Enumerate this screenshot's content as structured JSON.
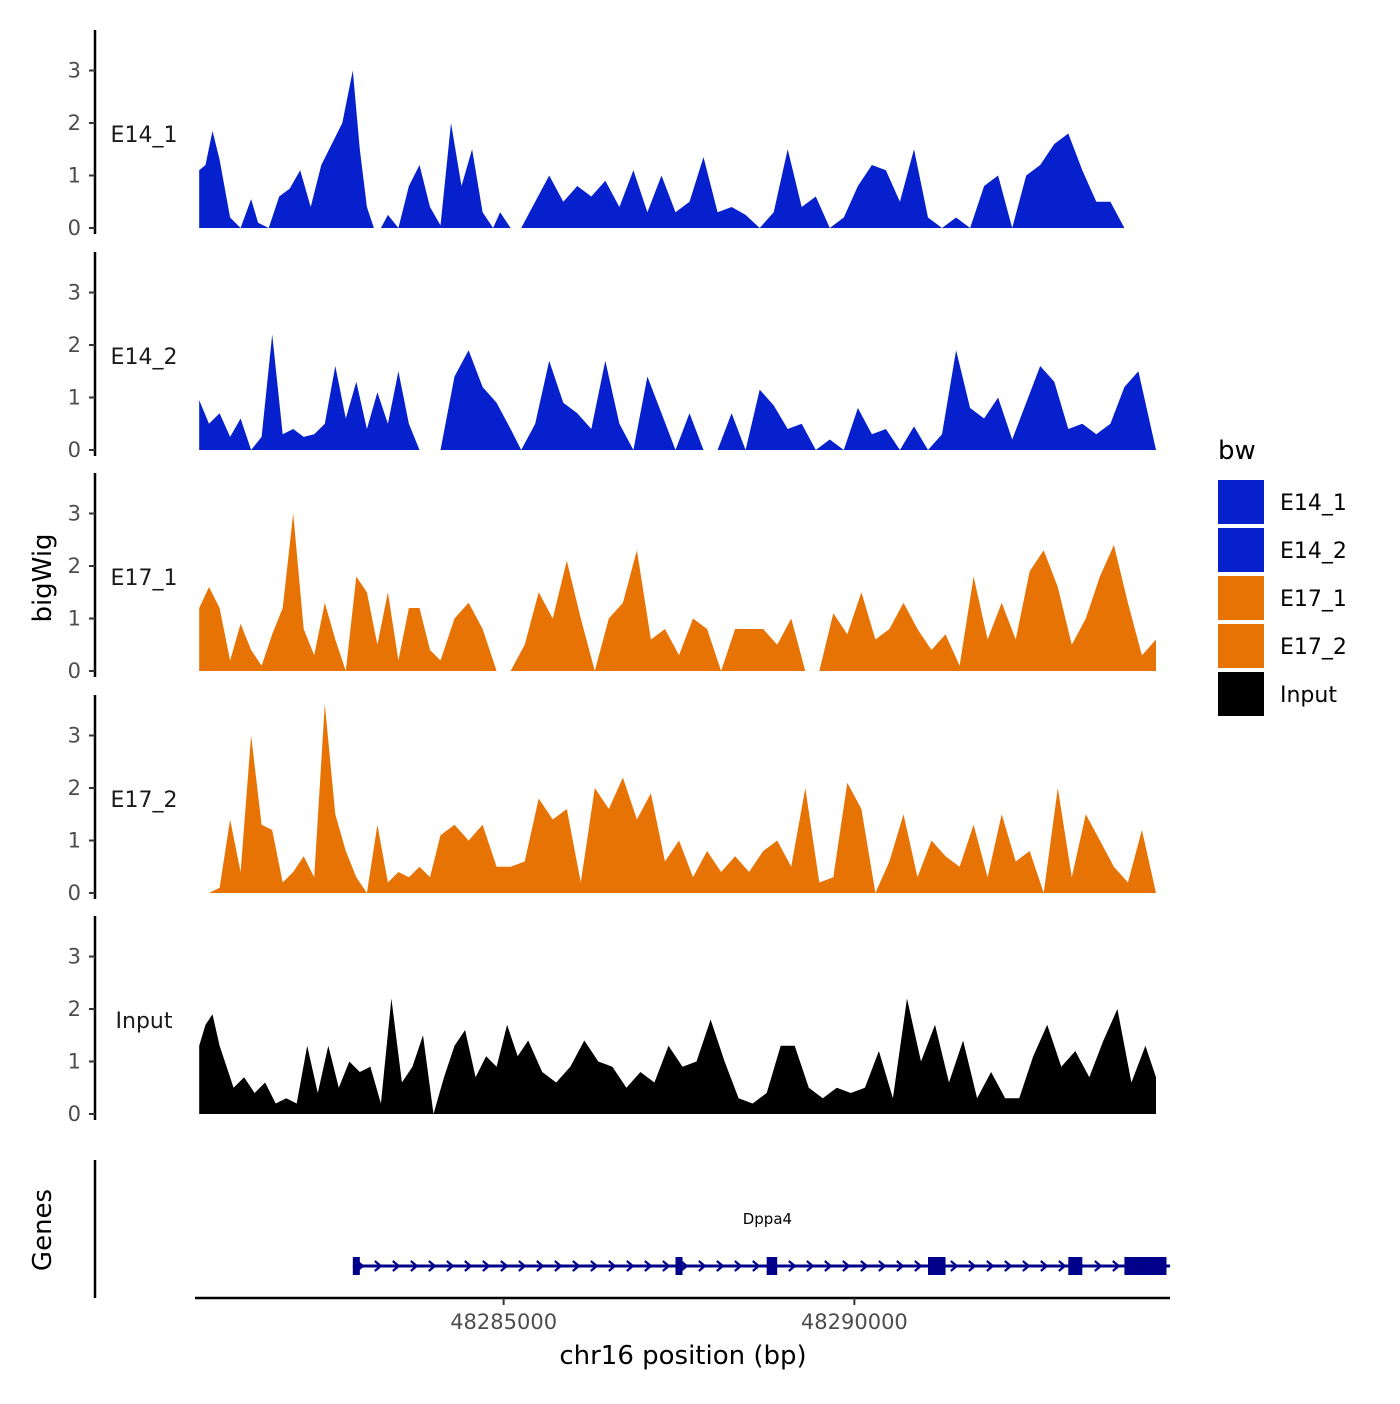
{
  "chart_data": {
    "type": "area",
    "chromosome": "chr16",
    "xlabel": "chr16 position (bp)",
    "ylabel": "bigWig",
    "genes_label": "Genes",
    "xlim": [
      48280600,
      48294500
    ],
    "x_ticks": [
      48285000,
      48290000
    ],
    "x_tick_labels": [
      "48285000",
      "48290000"
    ],
    "ylim": [
      0,
      3.8
    ],
    "y_ticks": [
      0,
      1,
      2,
      3
    ],
    "y_tick_labels": [
      "0",
      "1",
      "2",
      "3"
    ],
    "grid": false,
    "legend": {
      "title": "bw",
      "position": "right",
      "entries": [
        {
          "label": "E14_1",
          "color": "#0520CC"
        },
        {
          "label": "E14_2",
          "color": "#0520CC"
        },
        {
          "label": "E17_1",
          "color": "#E87305"
        },
        {
          "label": "E17_2",
          "color": "#E87305"
        },
        {
          "label": "Input",
          "color": "#000000"
        }
      ]
    },
    "series": [
      {
        "name": "E14_1",
        "color": "#0520CC",
        "x": [
          48280660,
          48280750,
          48280850,
          48280950,
          48281100,
          48281250,
          48281400,
          48281500,
          48281650,
          48281800,
          48281950,
          48282100,
          48282250,
          48282400,
          48282550,
          48282700,
          48282850,
          48282950,
          48283050,
          48283150,
          48283250,
          48283350,
          48283500,
          48283650,
          48283800,
          48283950,
          48284100,
          48284250,
          48284400,
          48284550,
          48284700,
          48284850,
          48284950,
          48285100,
          48285250,
          48285450,
          48285650,
          48285850,
          48286050,
          48286250,
          48286450,
          48286650,
          48286850,
          48287050,
          48287250,
          48287450,
          48287650,
          48287850,
          48288050,
          48288250,
          48288450,
          48288650,
          48288850,
          48289050,
          48289250,
          48289450,
          48289650,
          48289850,
          48290050,
          48290250,
          48290450,
          48290650,
          48290850,
          48291050,
          48291250,
          48291450,
          48291650,
          48291850,
          48292050,
          48292250,
          48292450,
          48292650,
          48292850,
          48293050,
          48293250,
          48293450,
          48293650,
          48293850,
          48294050,
          48294200,
          48294300
        ],
        "values": [
          1.1,
          1.2,
          1.85,
          1.3,
          0.2,
          0,
          0.55,
          0.1,
          0,
          0.6,
          0.75,
          1.1,
          0.4,
          1.2,
          1.6,
          2.0,
          3.0,
          1.5,
          0.4,
          0,
          0,
          0.25,
          0,
          0.8,
          1.2,
          0.4,
          0.05,
          2.0,
          0.8,
          1.5,
          0.3,
          0,
          0.3,
          0,
          0,
          0.5,
          1.0,
          0.5,
          0.8,
          0.6,
          0.9,
          0.4,
          1.1,
          0.3,
          1.0,
          0.3,
          0.5,
          1.35,
          0.3,
          0.4,
          0.25,
          0,
          0.3,
          1.5,
          0.4,
          0.6,
          0,
          0.2,
          0.8,
          1.2,
          1.1,
          0.5,
          1.5,
          0.2,
          0,
          0.2,
          0,
          0.8,
          1.0,
          0,
          1.0,
          1.2,
          1.6,
          1.8,
          1.1,
          0.5,
          0.5,
          0,
          0,
          0,
          0
        ]
      },
      {
        "name": "E14_2",
        "color": "#0520CC",
        "x": [
          48280660,
          48280800,
          48280950,
          48281100,
          48281250,
          48281400,
          48281550,
          48281700,
          48281850,
          48282000,
          48282150,
          48282300,
          48282450,
          48282600,
          48282750,
          48282900,
          48283050,
          48283200,
          48283350,
          48283500,
          48283650,
          48283800,
          48283950,
          48284100,
          48284300,
          48284500,
          48284700,
          48284900,
          48285100,
          48285250,
          48285450,
          48285650,
          48285850,
          48286050,
          48286250,
          48286450,
          48286650,
          48286850,
          48287050,
          48287250,
          48287450,
          48287650,
          48287850,
          48288050,
          48288250,
          48288450,
          48288650,
          48288850,
          48289050,
          48289250,
          48289450,
          48289650,
          48289850,
          48290050,
          48290250,
          48290450,
          48290650,
          48290850,
          48291050,
          48291250,
          48291450,
          48291650,
          48291850,
          48292050,
          48292250,
          48292450,
          48292650,
          48292850,
          48293050,
          48293250,
          48293450,
          48293650,
          48293850,
          48294050,
          48294300
        ],
        "values": [
          0.95,
          0.5,
          0.7,
          0.25,
          0.6,
          0,
          0.25,
          2.2,
          0.3,
          0.4,
          0.25,
          0.3,
          0.5,
          1.6,
          0.6,
          1.3,
          0.4,
          1.1,
          0.5,
          1.5,
          0.5,
          0,
          0,
          0,
          1.4,
          1.9,
          1.2,
          0.9,
          0.4,
          0,
          0.5,
          1.7,
          0.9,
          0.7,
          0.4,
          1.7,
          0.5,
          0,
          1.4,
          0.7,
          0,
          0.7,
          0,
          0,
          0.7,
          0,
          1.15,
          0.85,
          0.4,
          0.5,
          0,
          0.2,
          0,
          0.8,
          0.3,
          0.4,
          0,
          0.45,
          0,
          0.3,
          1.9,
          0.8,
          0.6,
          1.0,
          0.2,
          0.9,
          1.6,
          1.3,
          0.4,
          0.5,
          0.3,
          0.5,
          1.2,
          1.5,
          0
        ]
      },
      {
        "name": "E17_1",
        "color": "#E87305",
        "x": [
          48280660,
          48280800,
          48280950,
          48281100,
          48281250,
          48281400,
          48281550,
          48281700,
          48281850,
          48282000,
          48282150,
          48282300,
          48282450,
          48282600,
          48282750,
          48282900,
          48283050,
          48283200,
          48283350,
          48283500,
          48283650,
          48283800,
          48283950,
          48284100,
          48284300,
          48284500,
          48284700,
          48284900,
          48285100,
          48285300,
          48285500,
          48285700,
          48285900,
          48286100,
          48286300,
          48286500,
          48286700,
          48286900,
          48287100,
          48287300,
          48287500,
          48287700,
          48287900,
          48288100,
          48288300,
          48288500,
          48288700,
          48288900,
          48289100,
          48289300,
          48289500,
          48289700,
          48289900,
          48290100,
          48290300,
          48290500,
          48290700,
          48290900,
          48291100,
          48291300,
          48291500,
          48291700,
          48291900,
          48292100,
          48292300,
          48292500,
          48292700,
          48292900,
          48293100,
          48293300,
          48293500,
          48293700,
          48293900,
          48294100,
          48294300
        ],
        "values": [
          1.2,
          1.6,
          1.2,
          0.2,
          0.9,
          0.4,
          0.1,
          0.7,
          1.2,
          3.0,
          0.8,
          0.3,
          1.3,
          0.6,
          0,
          1.8,
          1.5,
          0.5,
          1.5,
          0.2,
          1.2,
          1.2,
          0.4,
          0.2,
          1.0,
          1.3,
          0.8,
          0,
          0,
          0.5,
          1.5,
          1.0,
          2.1,
          1.0,
          0,
          1.0,
          1.3,
          2.3,
          0.6,
          0.8,
          0.3,
          1.0,
          0.8,
          0,
          0.8,
          0.8,
          0.8,
          0.5,
          1.0,
          0,
          0,
          1.1,
          0.7,
          1.5,
          0.6,
          0.8,
          1.3,
          0.8,
          0.4,
          0.7,
          0.1,
          1.8,
          0.6,
          1.3,
          0.6,
          1.9,
          2.3,
          1.6,
          0.5,
          1.0,
          1.8,
          2.4,
          1.3,
          0.3,
          0.6
        ]
      },
      {
        "name": "E17_2",
        "color": "#E87305",
        "x": [
          48280660,
          48280800,
          48280950,
          48281100,
          48281250,
          48281400,
          48281550,
          48281700,
          48281850,
          48282000,
          48282150,
          48282300,
          48282450,
          48282600,
          48282750,
          48282900,
          48283050,
          48283200,
          48283350,
          48283500,
          48283650,
          48283800,
          48283950,
          48284100,
          48284300,
          48284500,
          48284700,
          48284900,
          48285100,
          48285300,
          48285500,
          48285700,
          48285900,
          48286100,
          48286300,
          48286500,
          48286700,
          48286900,
          48287100,
          48287300,
          48287500,
          48287700,
          48287900,
          48288100,
          48288300,
          48288500,
          48288700,
          48288900,
          48289100,
          48289300,
          48289500,
          48289700,
          48289900,
          48290100,
          48290300,
          48290500,
          48290700,
          48290900,
          48291100,
          48291300,
          48291500,
          48291700,
          48291900,
          48292100,
          48292300,
          48292500,
          48292700,
          48292900,
          48293100,
          48293300,
          48293500,
          48293700,
          48293900,
          48294100,
          48294300
        ],
        "values": [
          0,
          0,
          0.1,
          1.4,
          0.4,
          3.0,
          1.3,
          1.2,
          0.2,
          0.4,
          0.7,
          0.3,
          3.6,
          1.5,
          0.8,
          0.3,
          0,
          1.3,
          0.2,
          0.4,
          0.3,
          0.5,
          0.3,
          1.1,
          1.3,
          1.0,
          1.3,
          0.5,
          0.5,
          0.6,
          1.8,
          1.4,
          1.6,
          0.2,
          2.0,
          1.6,
          2.2,
          1.4,
          1.9,
          0.6,
          1.0,
          0.3,
          0.8,
          0.4,
          0.7,
          0.4,
          0.8,
          1.0,
          0.5,
          2.0,
          0.2,
          0.3,
          2.1,
          1.6,
          0,
          0.6,
          1.5,
          0.3,
          1.0,
          0.7,
          0.5,
          1.3,
          0.3,
          1.5,
          0.6,
          0.8,
          0,
          2.0,
          0.3,
          1.5,
          1.0,
          0.5,
          0.2,
          1.2,
          0
        ]
      },
      {
        "name": "Input",
        "color": "#000000",
        "x": [
          48280660,
          48280750,
          48280850,
          48280950,
          48281050,
          48281150,
          48281300,
          48281450,
          48281600,
          48281750,
          48281900,
          48282050,
          48282200,
          48282350,
          48282500,
          48282650,
          48282800,
          48282950,
          48283100,
          48283250,
          48283400,
          48283550,
          48283700,
          48283850,
          48284000,
          48284150,
          48284300,
          48284450,
          48284600,
          48284750,
          48284900,
          48285050,
          48285200,
          48285350,
          48285550,
          48285750,
          48285950,
          48286150,
          48286350,
          48286550,
          48286750,
          48286950,
          48287150,
          48287350,
          48287550,
          48287750,
          48287950,
          48288150,
          48288350,
          48288550,
          48288750,
          48288950,
          48289150,
          48289350,
          48289550,
          48289750,
          48289950,
          48290150,
          48290350,
          48290550,
          48290750,
          48290950,
          48291150,
          48291350,
          48291550,
          48291750,
          48291950,
          48292150,
          48292350,
          48292550,
          48292750,
          48292950,
          48293150,
          48293350,
          48293550,
          48293750,
          48293950,
          48294150,
          48294300
        ],
        "values": [
          1.3,
          1.7,
          1.9,
          1.3,
          0.9,
          0.5,
          0.7,
          0.4,
          0.6,
          0.2,
          0.3,
          0.2,
          1.3,
          0.4,
          1.3,
          0.5,
          1.0,
          0.8,
          0.9,
          0.2,
          2.2,
          0.6,
          0.9,
          1.5,
          0,
          0.7,
          1.3,
          1.6,
          0.7,
          1.1,
          0.9,
          1.7,
          1.1,
          1.4,
          0.8,
          0.6,
          0.9,
          1.4,
          1.0,
          0.9,
          0.5,
          0.8,
          0.6,
          1.3,
          0.9,
          1.0,
          1.8,
          1.0,
          0.3,
          0.2,
          0.4,
          1.3,
          1.3,
          0.5,
          0.3,
          0.5,
          0.4,
          0.5,
          1.2,
          0.3,
          2.2,
          1.0,
          1.7,
          0.6,
          1.4,
          0.3,
          0.8,
          0.3,
          0.3,
          1.1,
          1.7,
          0.9,
          1.2,
          0.7,
          1.4,
          2.0,
          0.6,
          1.3,
          0.7
        ]
      }
    ],
    "gene": {
      "name": "Dppa4",
      "strand": "+",
      "start": 48282850,
      "end": 48294500,
      "color": "#00008B",
      "exons": [
        [
          48282850,
          48282950
        ],
        [
          48287450,
          48287550
        ],
        [
          48288750,
          48288900
        ],
        [
          48291050,
          48291300
        ],
        [
          48293050,
          48293250
        ],
        [
          48293850,
          48294450
        ]
      ]
    }
  }
}
